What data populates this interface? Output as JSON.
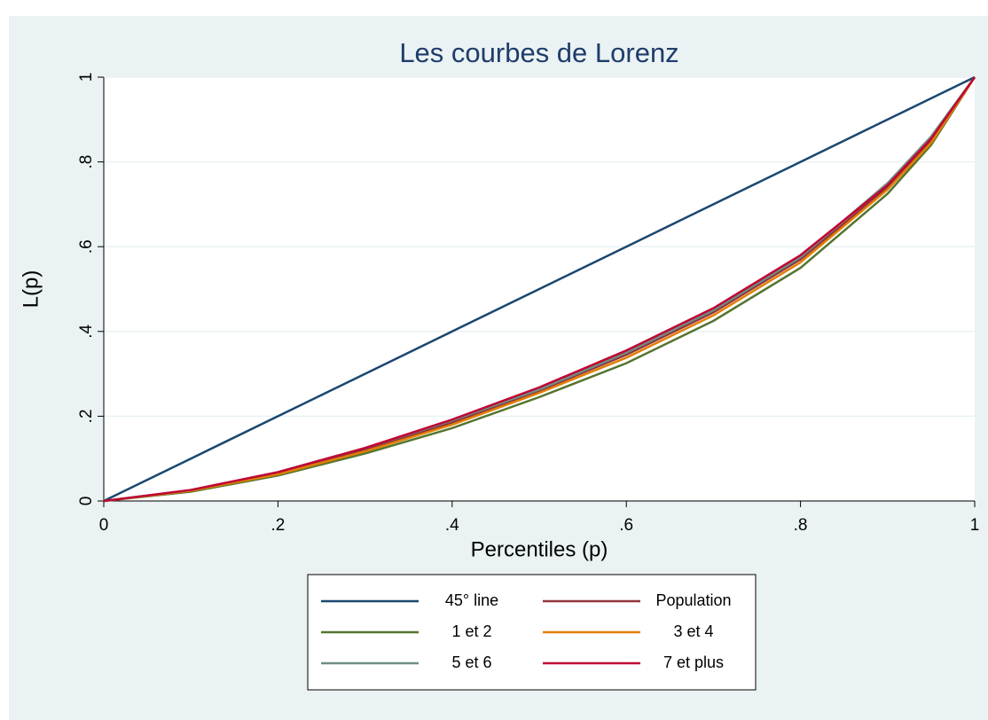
{
  "chart_data": {
    "type": "line",
    "title": "Les courbes de Lorenz",
    "x_label": "Percentiles (p)",
    "y_label": "L(p)",
    "x": [
      0,
      0.1,
      0.2,
      0.3,
      0.4,
      0.5,
      0.6,
      0.7,
      0.8,
      0.9,
      0.95,
      1
    ],
    "series": [
      {
        "name": "45° line",
        "color": "#1a476f",
        "values": [
          0,
          0.1,
          0.2,
          0.3,
          0.4,
          0.5,
          0.6,
          0.7,
          0.8,
          0.9,
          0.95,
          1
        ]
      },
      {
        "name": "Population",
        "color": "#90353b",
        "values": [
          0,
          0.025,
          0.065,
          0.12,
          0.185,
          0.26,
          0.345,
          0.445,
          0.57,
          0.74,
          0.85,
          1
        ]
      },
      {
        "name": "1 et 2",
        "color": "#55752f",
        "values": [
          0,
          0.022,
          0.06,
          0.112,
          0.172,
          0.245,
          0.325,
          0.425,
          0.55,
          0.725,
          0.84,
          1
        ]
      },
      {
        "name": "3 et 4",
        "color": "#e37e00",
        "values": [
          0,
          0.024,
          0.063,
          0.117,
          0.18,
          0.255,
          0.338,
          0.438,
          0.563,
          0.735,
          0.845,
          1
        ]
      },
      {
        "name": "5 et 6",
        "color": "#6e8e84",
        "values": [
          0,
          0.026,
          0.068,
          0.125,
          0.19,
          0.263,
          0.35,
          0.45,
          0.575,
          0.75,
          0.86,
          1
        ]
      },
      {
        "name": "7 et plus",
        "color": "#c10534",
        "values": [
          0,
          0.026,
          0.068,
          0.125,
          0.192,
          0.268,
          0.355,
          0.455,
          0.58,
          0.745,
          0.855,
          1
        ]
      }
    ],
    "xlim": [
      0,
      1
    ],
    "ylim": [
      0,
      1
    ],
    "xticks": [
      0,
      {
        "value": 0.2,
        "label": ".2"
      },
      {
        "value": 0.4,
        "label": ".4"
      },
      {
        "value": 0.6,
        "label": ".6"
      },
      {
        "value": 0.8,
        "label": ".8"
      },
      1
    ],
    "yticks": [
      0,
      {
        "value": 0.2,
        "label": ".2"
      },
      {
        "value": 0.4,
        "label": ".4"
      },
      {
        "value": 0.6,
        "label": ".6"
      },
      {
        "value": 0.8,
        "label": ".8"
      },
      1
    ],
    "grid": true
  }
}
